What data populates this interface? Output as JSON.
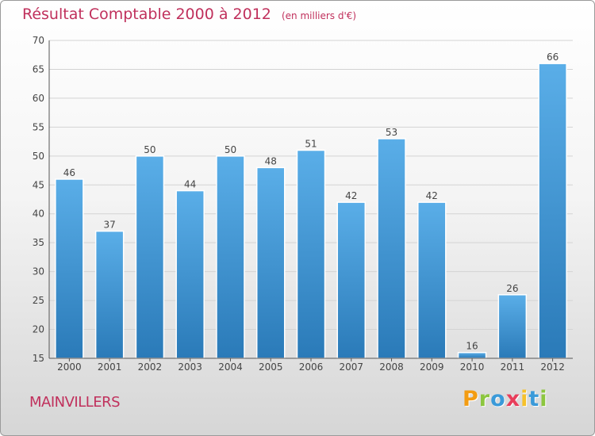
{
  "header": {
    "title": "Résultat Comptable 2000 à 2012",
    "subtitle": "(en milliers d'€)"
  },
  "footer": {
    "town": "MAINVILLERS",
    "logo_letters": [
      "P",
      "r",
      "o",
      "x",
      "i",
      "t",
      "i"
    ],
    "logo_colors": [
      "#f39c12",
      "#8cc63f",
      "#3a9ad9",
      "#e83e5b",
      "#f6c12b",
      "#3a9ad9",
      "#8cc63f"
    ]
  },
  "colors": {
    "bar_top": "#5aaee8",
    "bar_bottom": "#2a7ab8",
    "title": "#c0305c",
    "grid": "#d3d3d3",
    "axis_text": "#444444"
  },
  "chart_data": {
    "type": "bar",
    "title": "Résultat Comptable 2000 à 2012",
    "subtitle": "(en milliers d'€)",
    "categories": [
      "2000",
      "2001",
      "2002",
      "2003",
      "2004",
      "2005",
      "2006",
      "2007",
      "2008",
      "2009",
      "2010",
      "2011",
      "2012"
    ],
    "values": [
      46,
      37,
      50,
      44,
      50,
      48,
      51,
      42,
      53,
      42,
      16,
      26,
      66
    ],
    "ylim": [
      15,
      70
    ],
    "yticks": [
      15,
      20,
      25,
      30,
      35,
      40,
      45,
      50,
      55,
      60,
      65,
      70
    ],
    "xlabel": "",
    "ylabel": "",
    "grid": true,
    "legend": "none"
  }
}
